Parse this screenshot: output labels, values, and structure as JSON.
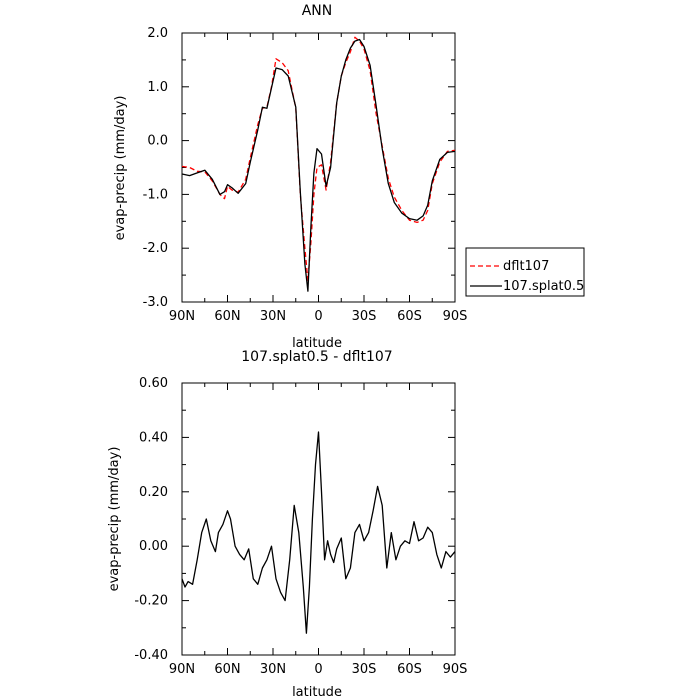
{
  "chart_data": [
    {
      "type": "line",
      "title": "ANN",
      "xlabel": "latitude",
      "ylabel": "evap-precip (mm/day)",
      "xlim": [
        90,
        -90
      ],
      "ylim": [
        -3.0,
        2.0
      ],
      "x_ticks": [
        90,
        60,
        30,
        0,
        -30,
        -60,
        -90
      ],
      "x_tick_labels": [
        "90N",
        "60N",
        "30N",
        "0",
        "30S",
        "60S",
        "90S"
      ],
      "y_ticks": [
        -3.0,
        -2.0,
        -1.0,
        0.0,
        1.0,
        2.0
      ],
      "y_tick_labels": [
        "-3.0",
        "-2.0",
        "-1.0",
        "0.0",
        "1.0",
        "2.0"
      ],
      "grid": false,
      "legend_position": "outside-right",
      "series": [
        {
          "name": "dflt107",
          "color": "#ff0000",
          "dash": "dashed",
          "x": [
            90,
            85,
            80,
            75,
            70,
            65,
            62,
            60,
            57,
            53,
            48,
            45,
            40,
            37,
            34,
            31,
            28,
            24,
            20,
            15,
            12,
            9,
            7,
            5,
            3,
            1,
            -2,
            -5,
            -8,
            -12,
            -15,
            -18,
            -21,
            -24,
            -27,
            -30,
            -34,
            -38,
            -42,
            -46,
            -50,
            -55,
            -60,
            -65,
            -69,
            -72,
            -75,
            -80,
            -85,
            -90
          ],
          "y": [
            -0.48,
            -0.5,
            -0.57,
            -0.58,
            -0.75,
            -1.0,
            -1.08,
            -0.85,
            -0.92,
            -0.96,
            -0.72,
            -0.32,
            0.3,
            0.6,
            0.62,
            1.0,
            1.52,
            1.45,
            1.3,
            0.6,
            -1.0,
            -2.0,
            -2.6,
            -1.9,
            -1.0,
            -0.5,
            -0.45,
            -0.92,
            -0.4,
            0.7,
            1.2,
            1.45,
            1.65,
            1.92,
            1.85,
            1.7,
            1.3,
            0.5,
            -0.1,
            -0.7,
            -1.05,
            -1.3,
            -1.48,
            -1.52,
            -1.48,
            -1.3,
            -0.8,
            -0.4,
            -0.2,
            -0.18
          ]
        },
        {
          "name": "107.splat0.5",
          "color": "#000000",
          "dash": "solid",
          "x": [
            90,
            85,
            80,
            75,
            70,
            65,
            62,
            60,
            57,
            53,
            48,
            45,
            40,
            37,
            34,
            31,
            28,
            24,
            20,
            15,
            12,
            9,
            7,
            5,
            3,
            1,
            -2,
            -5,
            -8,
            -12,
            -15,
            -18,
            -21,
            -24,
            -27,
            -30,
            -34,
            -38,
            -42,
            -46,
            -50,
            -55,
            -60,
            -65,
            -69,
            -72,
            -75,
            -80,
            -85,
            -90
          ],
          "y": [
            -0.62,
            -0.65,
            -0.6,
            -0.55,
            -0.72,
            -1.0,
            -0.95,
            -0.82,
            -0.88,
            -0.98,
            -0.8,
            -0.4,
            0.2,
            0.62,
            0.6,
            0.98,
            1.35,
            1.32,
            1.2,
            0.62,
            -0.95,
            -2.3,
            -2.8,
            -1.6,
            -0.6,
            -0.15,
            -0.25,
            -0.85,
            -0.5,
            0.7,
            1.2,
            1.5,
            1.72,
            1.85,
            1.88,
            1.75,
            1.4,
            0.65,
            -0.15,
            -0.8,
            -1.15,
            -1.35,
            -1.45,
            -1.48,
            -1.4,
            -1.2,
            -0.75,
            -0.35,
            -0.22,
            -0.2
          ]
        }
      ]
    },
    {
      "type": "line",
      "title": "107.splat0.5 - dflt107",
      "xlabel": "latitude",
      "ylabel": "evap-precip (mm/day)",
      "xlim": [
        90,
        -90
      ],
      "ylim": [
        -0.4,
        0.6
      ],
      "x_ticks": [
        90,
        60,
        30,
        0,
        -30,
        -60,
        -90
      ],
      "x_tick_labels": [
        "90N",
        "60N",
        "30N",
        "0",
        "30S",
        "60S",
        "90S"
      ],
      "y_ticks": [
        -0.4,
        -0.2,
        0.0,
        0.2,
        0.4,
        0.6
      ],
      "y_tick_labels": [
        "-0.40",
        "-0.20",
        "0.00",
        "0.20",
        "0.40",
        "0.60"
      ],
      "grid": false,
      "series": [
        {
          "color": "#000000",
          "dash": "solid",
          "x": [
            90,
            88,
            86,
            83,
            80,
            77,
            74,
            71,
            68,
            66,
            63,
            60,
            58,
            55,
            52,
            49,
            46,
            43,
            40,
            37,
            34,
            31,
            28,
            25,
            22,
            19,
            16,
            13,
            10,
            8,
            6,
            4,
            2,
            0,
            -2,
            -4,
            -6,
            -8,
            -10,
            -12,
            -15,
            -18,
            -21,
            -24,
            -27,
            -30,
            -33,
            -36,
            -39,
            -42,
            -45,
            -48,
            -51,
            -54,
            -57,
            -60,
            -63,
            -66,
            -69,
            -72,
            -75,
            -78,
            -81,
            -84,
            -87,
            -90
          ],
          "y": [
            -0.12,
            -0.15,
            -0.13,
            -0.14,
            -0.05,
            0.05,
            0.1,
            0.02,
            -0.02,
            0.05,
            0.08,
            0.13,
            0.1,
            0.0,
            -0.03,
            -0.05,
            -0.01,
            -0.12,
            -0.14,
            -0.08,
            -0.05,
            0.0,
            -0.12,
            -0.17,
            -0.2,
            -0.05,
            0.15,
            0.05,
            -0.15,
            -0.32,
            -0.15,
            0.1,
            0.3,
            0.42,
            0.2,
            -0.05,
            0.02,
            -0.03,
            -0.06,
            -0.01,
            0.03,
            -0.12,
            -0.08,
            0.05,
            0.08,
            0.02,
            0.05,
            0.13,
            0.22,
            0.15,
            -0.08,
            0.05,
            -0.05,
            0.0,
            0.02,
            0.01,
            0.09,
            0.02,
            0.03,
            0.07,
            0.05,
            -0.03,
            -0.08,
            -0.02,
            -0.04,
            -0.02
          ]
        }
      ]
    }
  ]
}
